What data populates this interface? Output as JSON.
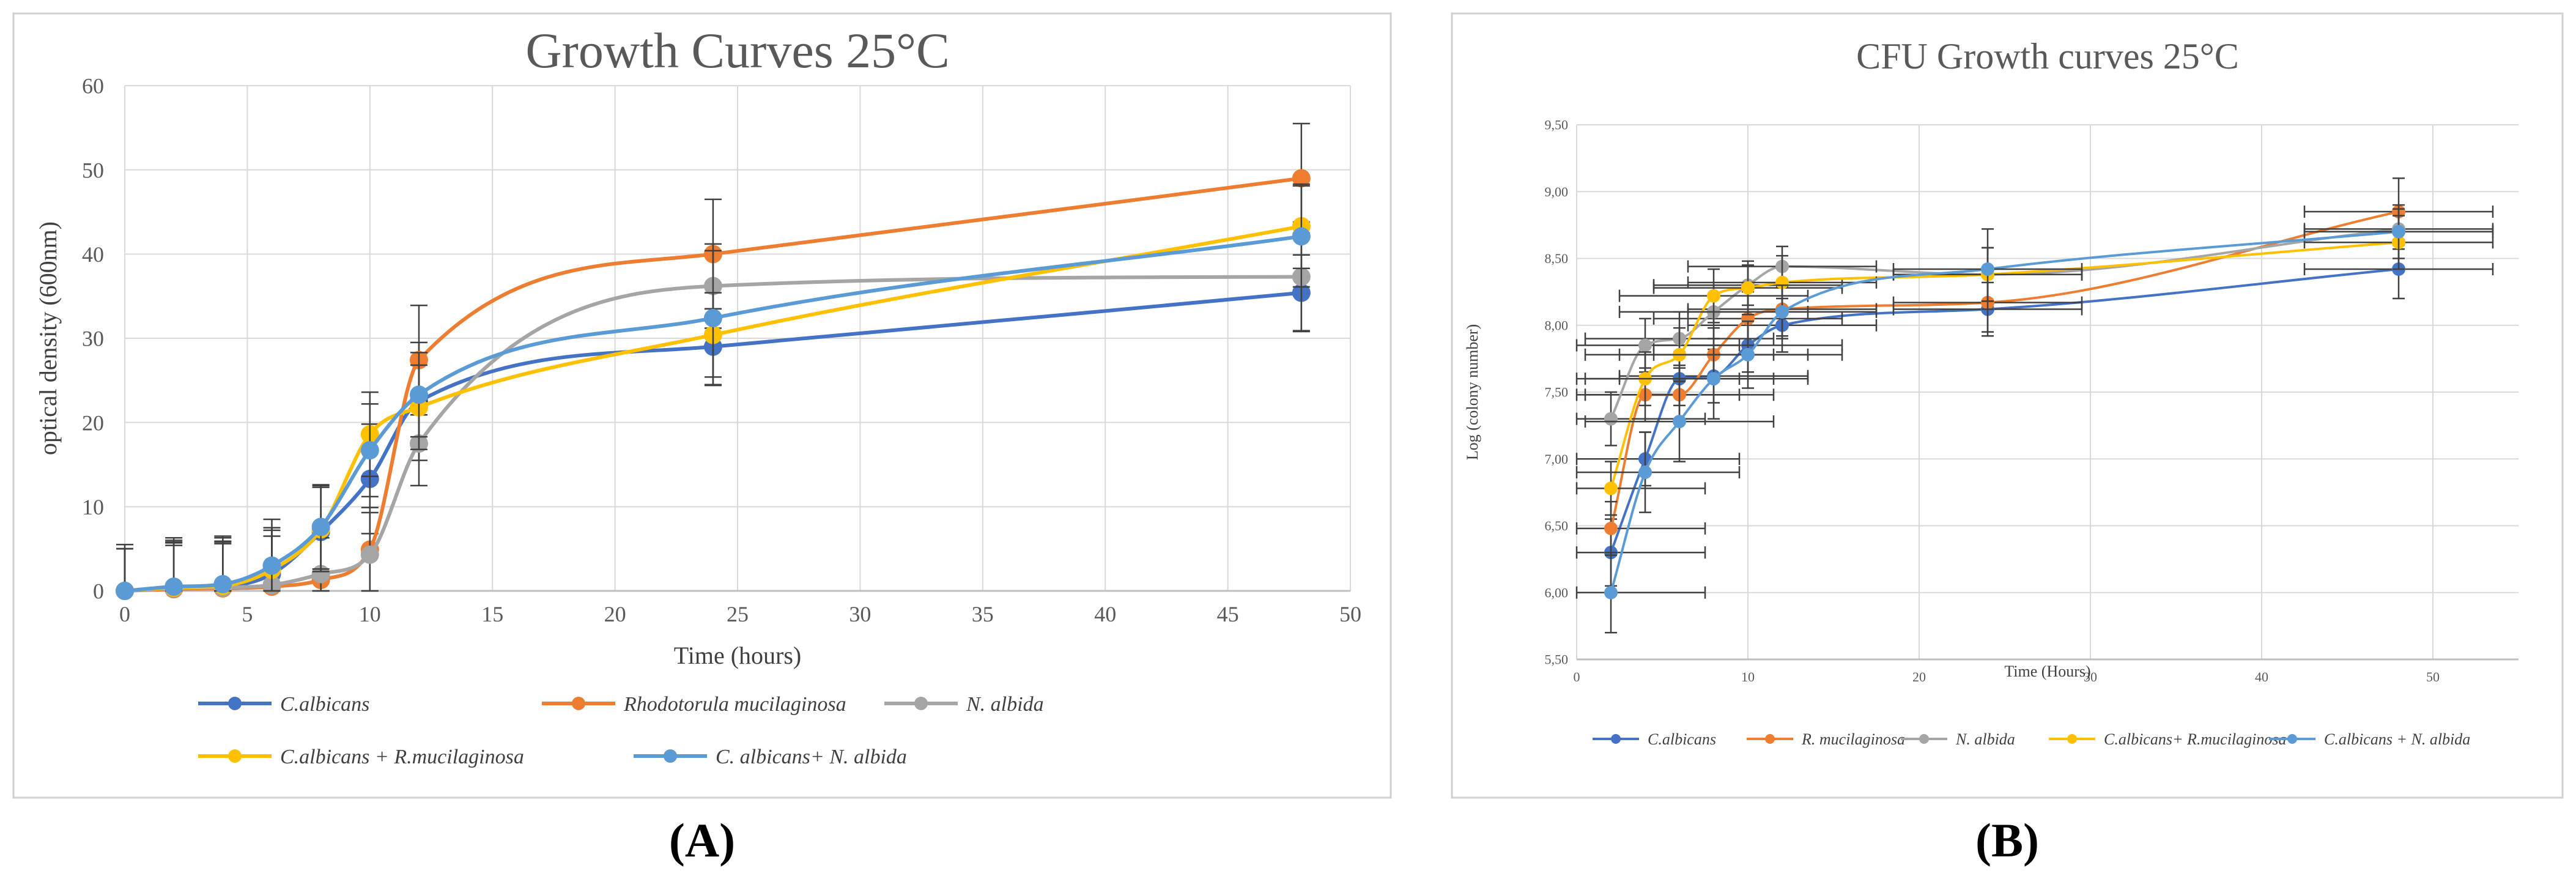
{
  "colors": {
    "blue": "#4472c4",
    "orange": "#ed7d31",
    "gray": "#a5a5a5",
    "yellow": "#ffc000",
    "lightblue": "#5b9bd5",
    "grid": "#d9d9d9",
    "errorbar": "#404040",
    "frame": "#d0d0d0"
  },
  "panels": {
    "A": "(A)",
    "B": "(B)"
  },
  "chart_data": [
    {
      "id": "A",
      "type": "line",
      "title": "Growth Curves 25°C",
      "xlabel": "Time (hours)",
      "ylabel": "optical density (600nm)",
      "xlim": [
        0,
        50
      ],
      "ylim": [
        0,
        60
      ],
      "xticks": [
        0,
        5,
        10,
        15,
        20,
        25,
        30,
        35,
        40,
        45,
        50
      ],
      "yticks": [
        0,
        10,
        20,
        30,
        40,
        50,
        60
      ],
      "xtick_labels": [
        "0",
        "5",
        "10",
        "15",
        "20",
        "25",
        "30",
        "35",
        "40",
        "45",
        "50"
      ],
      "ytick_labels": [
        "0",
        "10",
        "20",
        "30",
        "40",
        "50",
        "60"
      ],
      "grid": true,
      "legend_position": "bottom",
      "x": [
        0,
        2,
        4,
        6,
        8,
        10,
        12,
        24,
        48
      ],
      "series": [
        {
          "name": "C.albicans",
          "italic": true,
          "color": "blue",
          "values": [
            0,
            0.3,
            0.5,
            2.0,
            7.0,
            13.3,
            22.5,
            29.0,
            35.4
          ],
          "err": [
            5.5,
            6.0,
            6.0,
            6.5,
            5.5,
            6.5,
            7.0,
            4.5,
            4.5
          ]
        },
        {
          "name": "Rhodotorula mucilaginosa",
          "italic": true,
          "color": "orange",
          "values": [
            0,
            0.2,
            0.3,
            0.5,
            1.3,
            4.9,
            27.4,
            40.0,
            49.0
          ],
          "err": [
            5.0,
            5.5,
            5.5,
            6.0,
            5.0,
            5.0,
            6.5,
            6.5,
            6.5
          ]
        },
        {
          "name": "N. albida",
          "italic": true,
          "color": "gray",
          "values": [
            0,
            0.3,
            0.4,
            0.7,
            2.0,
            4.3,
            17.5,
            36.2,
            37.3
          ],
          "err": [
            5.0,
            5.5,
            5.5,
            6.5,
            5.0,
            5.0,
            5.0,
            5.0,
            6.5
          ]
        },
        {
          "name": "C.albicans + R.mucilaginosa",
          "italic": true,
          "color": "yellow",
          "values": [
            0,
            0.4,
            0.6,
            2.5,
            7.3,
            18.6,
            21.8,
            30.4,
            43.3
          ],
          "err": [
            5.0,
            5.0,
            5.0,
            5.0,
            5.0,
            5.0,
            5.0,
            5.0,
            5.0
          ]
        },
        {
          "name": "C. albicans+ N. albida",
          "italic": true,
          "color": "lightblue",
          "values": [
            0,
            0.5,
            0.8,
            3.0,
            7.6,
            16.7,
            23.3,
            32.4,
            42.1
          ],
          "err": [
            5.0,
            5.5,
            5.5,
            4.5,
            5.0,
            5.5,
            5.0,
            8.0,
            6.0
          ]
        }
      ]
    },
    {
      "id": "B",
      "type": "line",
      "title": "CFU Growth curves 25°C",
      "xlabel": "Time (Hours)",
      "ylabel": "Log (colony number)",
      "xlim": [
        0,
        55
      ],
      "ylim": [
        5.5,
        9.5
      ],
      "xticks": [
        0,
        10,
        20,
        30,
        40,
        50
      ],
      "yticks": [
        5.5,
        6.0,
        6.5,
        7.0,
        7.5,
        8.0,
        8.5,
        9.0,
        9.5
      ],
      "xtick_labels": [
        "0",
        "10",
        "20",
        "30",
        "40",
        "50"
      ],
      "ytick_labels": [
        "5,50",
        "6,00",
        "6,50",
        "7,00",
        "7,50",
        "8,00",
        "8,50",
        "9,00",
        "9,50"
      ],
      "grid": true,
      "legend_position": "bottom",
      "x": [
        2,
        4,
        6,
        8,
        10,
        12,
        24,
        48
      ],
      "xerr": 5.5,
      "series": [
        {
          "name": "C.albicans",
          "italic": true,
          "color": "blue",
          "values": [
            6.3,
            7.0,
            7.6,
            7.62,
            7.85,
            8.0,
            8.12,
            8.42
          ],
          "err": [
            0.25,
            0.2,
            0.2,
            0.2,
            0.2,
            0.2,
            0.2,
            0.22
          ]
        },
        {
          "name": "R. mucilaginosa",
          "italic": true,
          "color": "orange",
          "values": [
            6.48,
            7.48,
            7.48,
            7.78,
            8.05,
            8.12,
            8.17,
            8.85
          ],
          "err": [
            0.2,
            0.2,
            0.2,
            0.2,
            0.2,
            0.2,
            0.22,
            0.25
          ]
        },
        {
          "name": "N. albida",
          "italic": true,
          "color": "gray",
          "values": [
            7.3,
            7.85,
            7.9,
            8.1,
            8.3,
            8.44,
            8.38,
            8.72
          ],
          "err": [
            0.2,
            0.2,
            0.2,
            0.2,
            0.15,
            0.15,
            0.2,
            0.15
          ]
        },
        {
          "name": "C.albicans+ R.mucilaginosa",
          "italic": true,
          "color": "yellow",
          "values": [
            6.78,
            7.6,
            7.78,
            8.22,
            8.28,
            8.32,
            8.38,
            8.62
          ],
          "err": [
            0.2,
            0.2,
            0.2,
            0.2,
            0.2,
            0.2,
            0.2,
            0.2
          ]
        },
        {
          "name": "C.albicans + N. albida",
          "italic": true,
          "color": "lightblue",
          "values": [
            6.0,
            6.9,
            7.28,
            7.6,
            7.78,
            8.1,
            8.42,
            8.7
          ],
          "err": [
            0.3,
            0.3,
            0.3,
            0.3,
            0.25,
            0.2,
            0.3,
            0.2
          ]
        }
      ]
    }
  ]
}
